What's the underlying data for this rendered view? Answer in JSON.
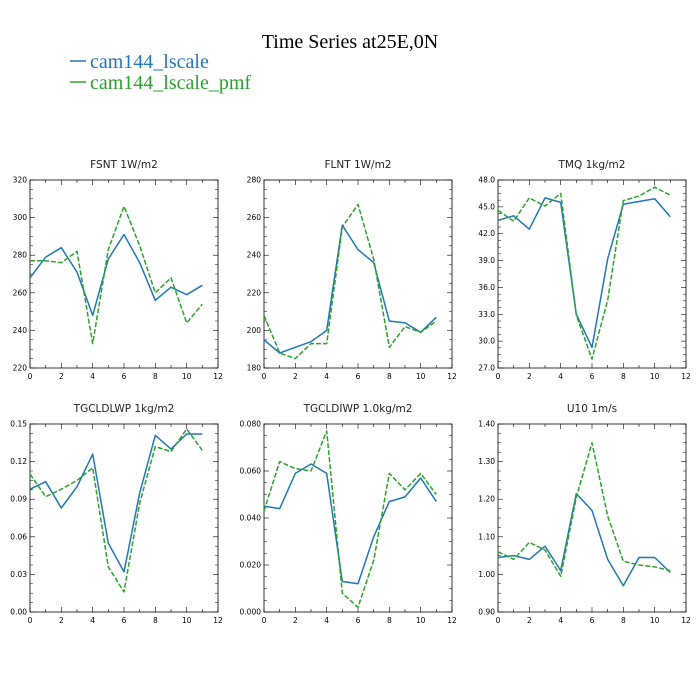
{
  "figure": {
    "title": "Time Series at25E,0N",
    "legend": [
      {
        "label": "cam144_lscale",
        "color": "#1f77b4",
        "dash": "solid"
      },
      {
        "label": "cam144_lscale_pmf",
        "color": "#2ca02c",
        "dash": "dashed"
      }
    ]
  },
  "chart_data": [
    {
      "type": "line",
      "title": "FSNT   1W/m2",
      "x": [
        0,
        1,
        2,
        3,
        4,
        5,
        6,
        7,
        8,
        9,
        10,
        11
      ],
      "xlim": [
        0,
        12
      ],
      "xticks": [
        "0",
        "2",
        "4",
        "6",
        "8",
        "10",
        "12"
      ],
      "ylim": [
        220,
        320
      ],
      "yticks": [
        "220",
        "240",
        "260",
        "280",
        "300",
        "320"
      ],
      "series": [
        {
          "name": "cam144_lscale",
          "values": [
            268,
            279,
            284,
            271,
            248,
            278,
            291,
            276,
            256,
            263,
            259,
            264
          ]
        },
        {
          "name": "cam144_lscale_pmf",
          "values": [
            277,
            277,
            276,
            282,
            233,
            283,
            306,
            285,
            260,
            268,
            244,
            254
          ]
        }
      ]
    },
    {
      "type": "line",
      "title": "FLNT   1W/m2",
      "x": [
        0,
        1,
        2,
        3,
        4,
        5,
        6,
        7,
        8,
        9,
        10,
        11
      ],
      "xlim": [
        0,
        12
      ],
      "xticks": [
        "0",
        "2",
        "4",
        "6",
        "8",
        "10",
        "12"
      ],
      "ylim": [
        180,
        280
      ],
      "yticks": [
        "180",
        "200",
        "220",
        "240",
        "260",
        "280"
      ],
      "series": [
        {
          "name": "cam144_lscale",
          "values": [
            195,
            188,
            191,
            194,
            200,
            256,
            243,
            236,
            205,
            204,
            199,
            207
          ]
        },
        {
          "name": "cam144_lscale_pmf",
          "values": [
            208,
            188,
            185,
            193,
            193,
            255,
            267,
            238,
            191,
            202,
            199,
            205
          ]
        }
      ]
    },
    {
      "type": "line",
      "title": "TMQ   1kg/m2",
      "x": [
        0,
        1,
        2,
        3,
        4,
        5,
        6,
        7,
        8,
        9,
        10,
        11
      ],
      "xlim": [
        0,
        12
      ],
      "xticks": [
        "0",
        "2",
        "4",
        "6",
        "8",
        "10",
        "12"
      ],
      "ylim": [
        27,
        48
      ],
      "yticks": [
        "27.0",
        "30.0",
        "33.0",
        "36.0",
        "39.0",
        "42.0",
        "45.0",
        "48.0"
      ],
      "series": [
        {
          "name": "cam144_lscale",
          "values": [
            43.5,
            44.0,
            42.5,
            46.0,
            45.5,
            33.0,
            29.3,
            39.2,
            45.3,
            45.6,
            45.9,
            43.9
          ]
        },
        {
          "name": "cam144_lscale_pmf",
          "values": [
            44.6,
            43.4,
            46.0,
            45.1,
            46.5,
            32.9,
            28.0,
            34.6,
            45.7,
            46.2,
            47.2,
            46.3
          ]
        }
      ]
    },
    {
      "type": "line",
      "title": "TGCLDLWP   1kg/m2",
      "x": [
        0,
        1,
        2,
        3,
        4,
        5,
        6,
        7,
        8,
        9,
        10,
        11
      ],
      "xlim": [
        0,
        12
      ],
      "xticks": [
        "0",
        "2",
        "4",
        "6",
        "8",
        "10",
        "12"
      ],
      "ylim": [
        0,
        0.15
      ],
      "yticks": [
        "0.00",
        "0.03",
        "0.06",
        "0.09",
        "0.12",
        "0.15"
      ],
      "series": [
        {
          "name": "cam144_lscale",
          "values": [
            0.098,
            0.104,
            0.083,
            0.1,
            0.126,
            0.055,
            0.032,
            0.095,
            0.141,
            0.13,
            0.142,
            0.142
          ]
        },
        {
          "name": "cam144_lscale_pmf",
          "values": [
            0.11,
            0.092,
            0.098,
            0.105,
            0.115,
            0.036,
            0.016,
            0.087,
            0.132,
            0.128,
            0.146,
            0.129
          ]
        }
      ]
    },
    {
      "type": "line",
      "title": "TGCLDIWP   1.0kg/m2",
      "x": [
        0,
        1,
        2,
        3,
        4,
        5,
        6,
        7,
        8,
        9,
        10,
        11
      ],
      "xlim": [
        0,
        12
      ],
      "xticks": [
        "0",
        "2",
        "4",
        "6",
        "8",
        "10",
        "12"
      ],
      "ylim": [
        0,
        0.08
      ],
      "yticks": [
        "0.000",
        "0.020",
        "0.040",
        "0.060",
        "0.080"
      ],
      "series": [
        {
          "name": "cam144_lscale",
          "values": [
            0.045,
            0.044,
            0.059,
            0.063,
            0.059,
            0.013,
            0.012,
            0.032,
            0.047,
            0.049,
            0.057,
            0.047
          ]
        },
        {
          "name": "cam144_lscale_pmf",
          "values": [
            0.043,
            0.064,
            0.061,
            0.06,
            0.077,
            0.008,
            0.002,
            0.022,
            0.059,
            0.052,
            0.059,
            0.05
          ]
        }
      ]
    },
    {
      "type": "line",
      "title": "U10   1m/s",
      "x": [
        0,
        1,
        2,
        3,
        4,
        5,
        6,
        7,
        8,
        9,
        10,
        11
      ],
      "xlim": [
        0,
        12
      ],
      "xticks": [
        "0",
        "2",
        "4",
        "6",
        "8",
        "10",
        "12"
      ],
      "ylim": [
        0.9,
        1.4
      ],
      "yticks": [
        "0.90",
        "1.00",
        "1.10",
        "1.20",
        "1.30",
        "1.40"
      ],
      "series": [
        {
          "name": "cam144_lscale",
          "values": [
            1.045,
            1.05,
            1.04,
            1.075,
            1.01,
            1.215,
            1.17,
            1.04,
            0.97,
            1.045,
            1.045,
            1.005
          ]
        },
        {
          "name": "cam144_lscale_pmf",
          "values": [
            1.06,
            1.04,
            1.085,
            1.065,
            0.995,
            1.205,
            1.35,
            1.155,
            1.035,
            1.025,
            1.02,
            1.01
          ]
        }
      ]
    }
  ]
}
